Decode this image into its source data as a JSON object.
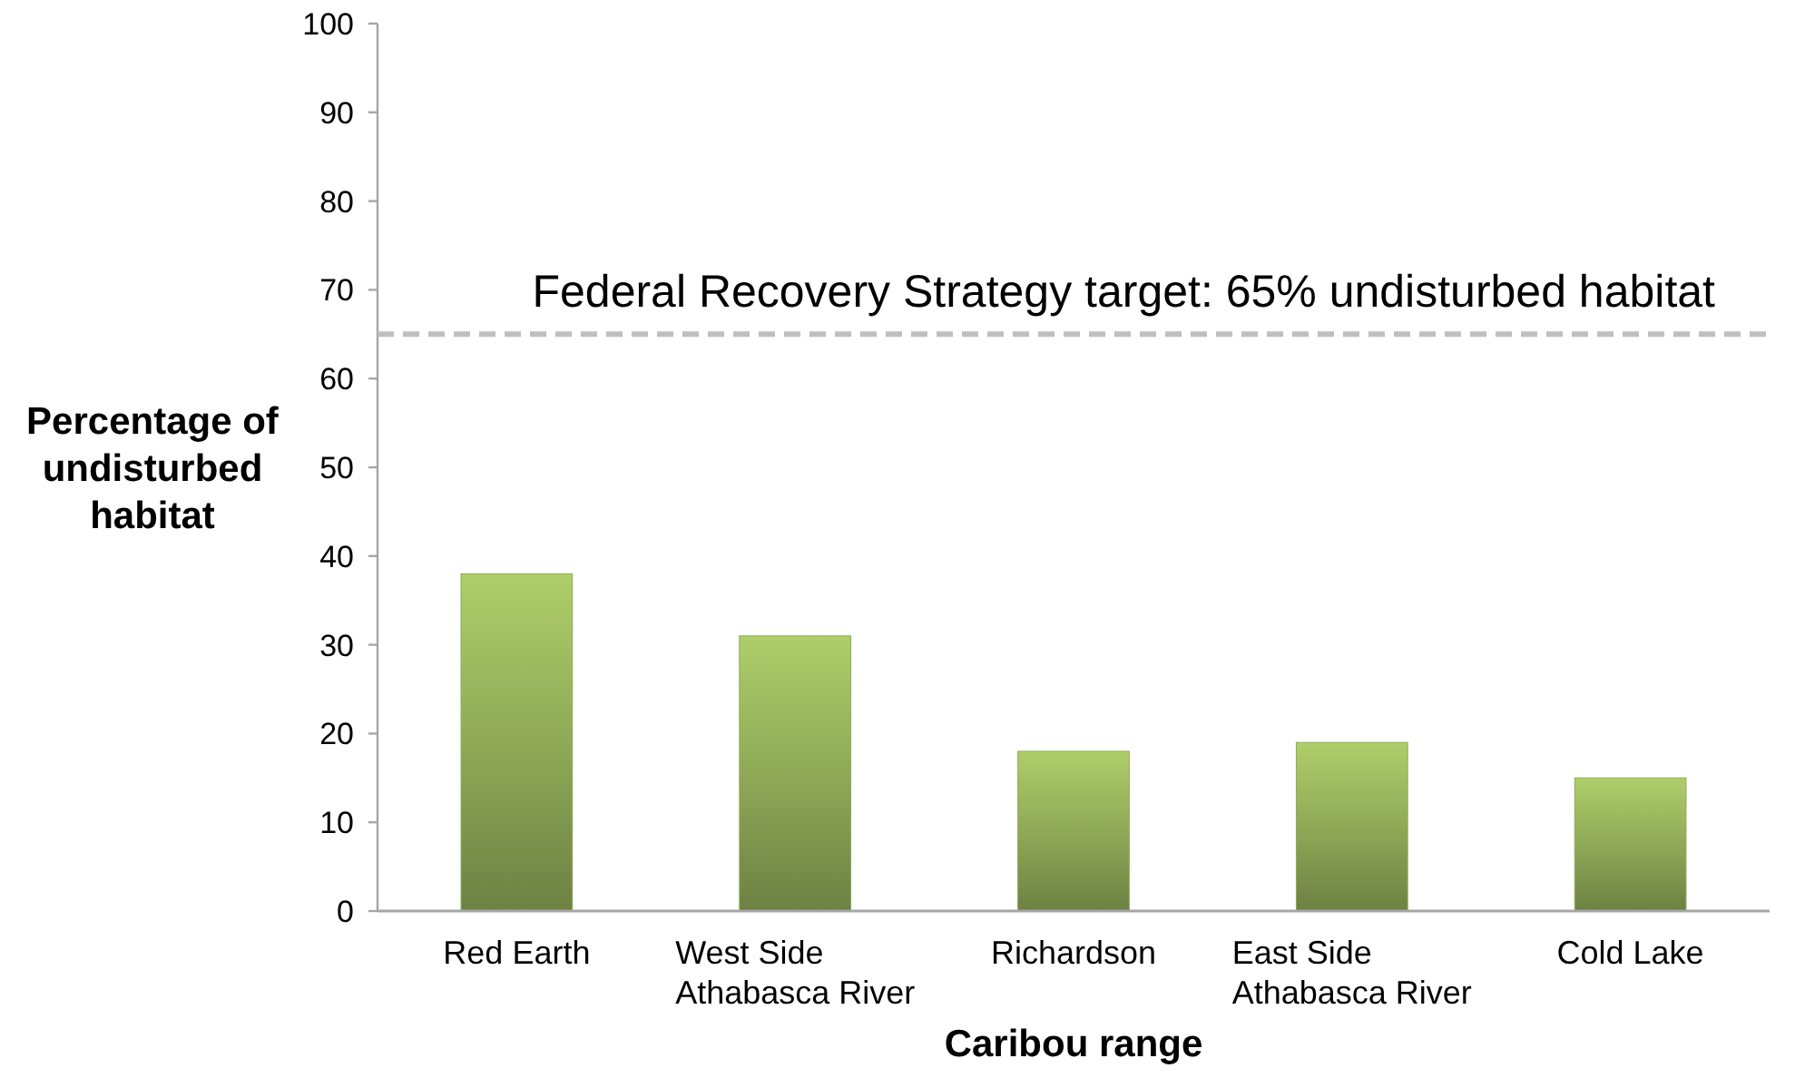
{
  "chart_data": {
    "type": "bar",
    "xlabel": "Caribou range",
    "ylabel": "Percentage of undisturbed habitat",
    "categories": [
      "Red Earth",
      "West Side Athabasca River",
      "Richardson",
      "East Side Athabasca River",
      "Cold Lake"
    ],
    "values": [
      38,
      31,
      18,
      19,
      15
    ],
    "color": "#8fa957",
    "ylim": [
      0,
      100
    ],
    "yticks": [
      0,
      10,
      20,
      30,
      40,
      50,
      60,
      70,
      80,
      90,
      100
    ],
    "ref_lines": [
      {
        "axis": "y",
        "value": 65,
        "label": "Federal Recovery Strategy target: 65% undisturbed habitat",
        "color": "#bfbfbf",
        "line_style": "dashed"
      }
    ]
  }
}
